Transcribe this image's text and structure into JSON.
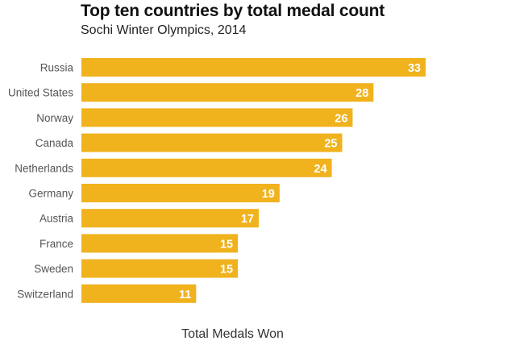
{
  "chart_data": {
    "type": "bar",
    "orientation": "horizontal",
    "title": "Top ten countries by total medal count",
    "subtitle": "Sochi Winter Olympics, 2014",
    "xlabel": "Total Medals Won",
    "ylabel": "",
    "categories": [
      "Russia",
      "United States",
      "Norway",
      "Canada",
      "Netherlands",
      "Germany",
      "Austria",
      "France",
      "Sweden",
      "Switzerland"
    ],
    "values": [
      33,
      28,
      26,
      25,
      24,
      19,
      17,
      15,
      15,
      11
    ],
    "xlim": [
      0,
      33
    ],
    "grid": false,
    "legend": "none",
    "bar_color": "#F0B21D",
    "label_color": "#ffffff"
  }
}
